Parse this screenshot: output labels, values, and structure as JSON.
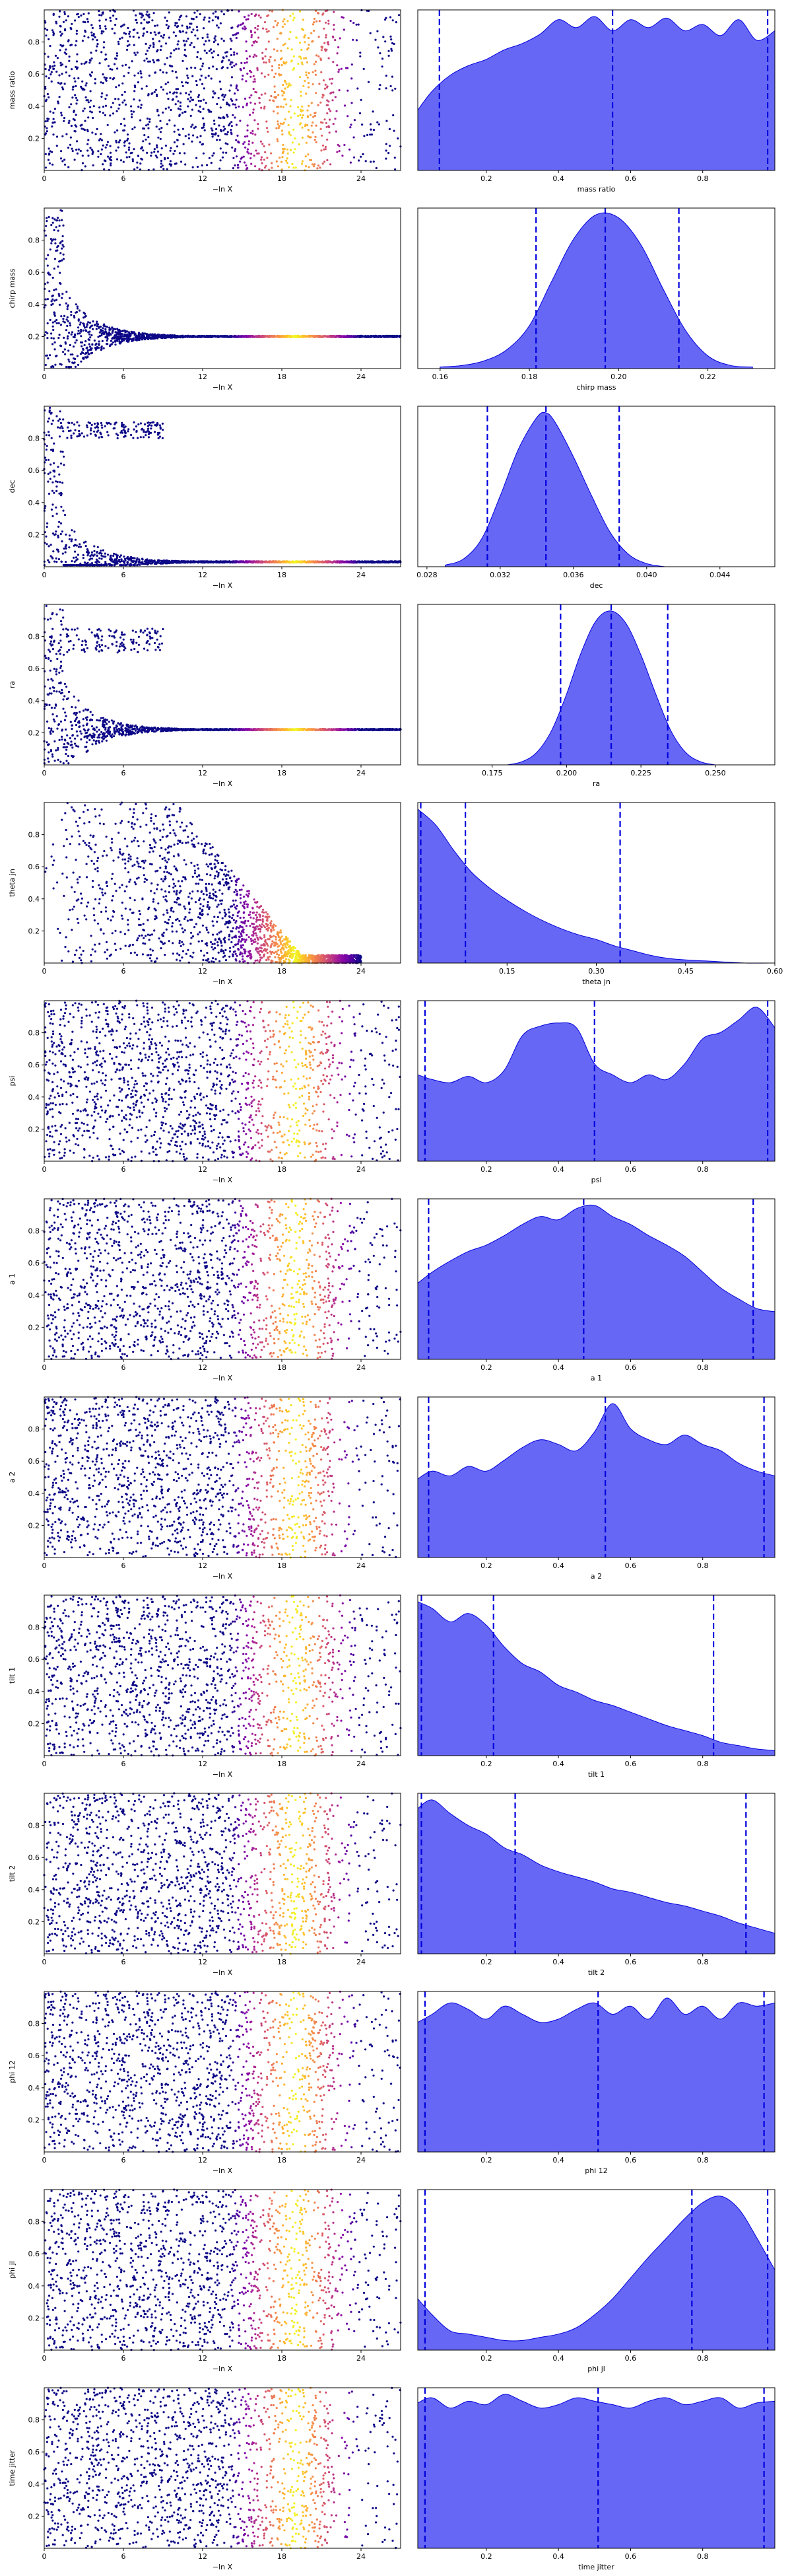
{
  "chart_data": [
    {
      "type": "scatter",
      "kind": "trace",
      "param": "mass ratio",
      "xlabel": "−ln X",
      "ylabel": "mass ratio",
      "xlim": [
        0,
        27
      ],
      "ylim": [
        0,
        1
      ],
      "xticks": [
        "0",
        "6",
        "12",
        "18",
        "24"
      ],
      "yticks": [
        "0.2",
        "0.4",
        "0.6",
        "0.8"
      ],
      "color_by": "sample density",
      "pattern": "uniform"
    },
    {
      "type": "area",
      "kind": "posterior",
      "xlabel": "mass ratio",
      "xlim": [
        0.01,
        1.0
      ],
      "xticks": [
        "0.2",
        "0.4",
        "0.6",
        "0.8"
      ],
      "quantile_lines": [
        0.07,
        0.55,
        0.98
      ],
      "x": [
        0.01,
        0.05,
        0.1,
        0.15,
        0.2,
        0.25,
        0.3,
        0.35,
        0.4,
        0.45,
        0.5,
        0.55,
        0.6,
        0.65,
        0.7,
        0.75,
        0.8,
        0.85,
        0.9,
        0.95,
        1.0
      ],
      "density": [
        0.38,
        0.5,
        0.6,
        0.66,
        0.7,
        0.76,
        0.8,
        0.86,
        0.95,
        0.9,
        0.97,
        0.88,
        0.95,
        0.9,
        0.96,
        0.88,
        0.92,
        0.85,
        0.95,
        0.82,
        0.88
      ],
      "fill_color": "#6464f5",
      "line_color": "#0000dd"
    },
    {
      "type": "scatter",
      "kind": "trace",
      "param": "chirp mass",
      "xlabel": "−ln X",
      "ylabel": "chirp mass",
      "xlim": [
        0,
        27
      ],
      "ylim": [
        0,
        1
      ],
      "xticks": [
        "0",
        "6",
        "12",
        "18",
        "24"
      ],
      "yticks": [
        "0.2",
        "0.4",
        "0.6",
        "0.8"
      ],
      "color_by": "sample density",
      "pattern": "converge",
      "converge_to": 0.2
    },
    {
      "type": "area",
      "kind": "posterior",
      "xlabel": "chirp mass",
      "xlim": [
        0.155,
        0.235
      ],
      "xticks": [
        "0.16",
        "0.18",
        "0.20",
        "0.22"
      ],
      "quantile_lines": [
        0.1815,
        0.197,
        0.2135
      ],
      "x": [
        0.16,
        0.165,
        0.17,
        0.175,
        0.18,
        0.185,
        0.19,
        0.195,
        0.2,
        0.205,
        0.21,
        0.215,
        0.22,
        0.225,
        0.23
      ],
      "density": [
        0.01,
        0.02,
        0.05,
        0.12,
        0.27,
        0.55,
        0.82,
        0.97,
        0.95,
        0.78,
        0.5,
        0.24,
        0.08,
        0.02,
        0.01
      ],
      "fill_color": "#6464f5",
      "line_color": "#0000dd"
    },
    {
      "type": "scatter",
      "kind": "trace",
      "param": "dec",
      "xlabel": "−ln X",
      "ylabel": "dec",
      "xlim": [
        0,
        27
      ],
      "ylim": [
        0,
        1
      ],
      "xticks": [
        "0",
        "6",
        "12",
        "18",
        "24"
      ],
      "yticks": [
        "0.2",
        "0.4",
        "0.6",
        "0.8"
      ],
      "color_by": "sample density",
      "pattern": "converge",
      "converge_to": 0.03,
      "cluster": [
        0.8,
        0.9
      ]
    },
    {
      "type": "area",
      "kind": "posterior",
      "xlabel": "dec",
      "xlim": [
        0.0275,
        0.047
      ],
      "xticks": [
        "0.028",
        "0.032",
        "0.036",
        "0.040",
        "0.044"
      ],
      "quantile_lines": [
        0.0313,
        0.0345,
        0.0385
      ],
      "x": [
        0.029,
        0.03,
        0.031,
        0.032,
        0.033,
        0.034,
        0.0345,
        0.035,
        0.036,
        0.037,
        0.038,
        0.039,
        0.04,
        0.041
      ],
      "density": [
        0.01,
        0.05,
        0.18,
        0.45,
        0.75,
        0.95,
        0.98,
        0.92,
        0.7,
        0.45,
        0.22,
        0.08,
        0.02,
        0.0
      ],
      "fill_color": "#6464f5",
      "line_color": "#0000dd"
    },
    {
      "type": "scatter",
      "kind": "trace",
      "param": "ra",
      "xlabel": "−ln X",
      "ylabel": "ra",
      "xlim": [
        0,
        27
      ],
      "ylim": [
        0,
        1
      ],
      "xticks": [
        "0",
        "6",
        "12",
        "18",
        "24"
      ],
      "yticks": [
        "0.2",
        "0.4",
        "0.6",
        "0.8"
      ],
      "color_by": "sample density",
      "pattern": "converge",
      "converge_to": 0.22,
      "cluster": [
        0.7,
        0.85
      ]
    },
    {
      "type": "area",
      "kind": "posterior",
      "xlabel": "ra",
      "xlim": [
        0.15,
        0.27
      ],
      "xticks": [
        "0.175",
        "0.200",
        "0.225",
        "0.250"
      ],
      "quantile_lines": [
        0.198,
        0.215,
        0.234
      ],
      "x": [
        0.18,
        0.185,
        0.19,
        0.195,
        0.2,
        0.205,
        0.21,
        0.215,
        0.22,
        0.225,
        0.23,
        0.235,
        0.24,
        0.245,
        0.25
      ],
      "density": [
        0.0,
        0.02,
        0.08,
        0.22,
        0.45,
        0.72,
        0.92,
        0.98,
        0.9,
        0.7,
        0.45,
        0.22,
        0.08,
        0.02,
        0.0
      ],
      "fill_color": "#6464f5",
      "line_color": "#0000dd"
    },
    {
      "type": "scatter",
      "kind": "trace",
      "param": "theta jn",
      "xlabel": "−ln X",
      "ylabel": "theta jn",
      "xlim": [
        0,
        27
      ],
      "ylim": [
        0,
        1
      ],
      "xticks": [
        "0",
        "6",
        "12",
        "18",
        "24"
      ],
      "yticks": [
        "0.2",
        "0.4",
        "0.6",
        "0.8"
      ],
      "color_by": "sample density",
      "pattern": "decay"
    },
    {
      "type": "area",
      "kind": "posterior",
      "xlabel": "theta jn",
      "xlim": [
        0.0,
        0.6
      ],
      "xticks": [
        "0.15",
        "0.30",
        "0.45",
        "0.60"
      ],
      "quantile_lines": [
        0.005,
        0.08,
        0.34
      ],
      "x": [
        0.0,
        0.03,
        0.06,
        0.09,
        0.12,
        0.15,
        0.18,
        0.21,
        0.24,
        0.27,
        0.3,
        0.33,
        0.36,
        0.39,
        0.42,
        0.45,
        0.5,
        0.55,
        0.6
      ],
      "density": [
        0.98,
        0.88,
        0.72,
        0.58,
        0.48,
        0.4,
        0.33,
        0.27,
        0.22,
        0.18,
        0.15,
        0.11,
        0.08,
        0.05,
        0.03,
        0.02,
        0.01,
        0.0,
        0.0
      ],
      "fill_color": "#6464f5",
      "line_color": "#0000dd"
    },
    {
      "type": "scatter",
      "kind": "trace",
      "param": "psi",
      "xlabel": "−ln X",
      "ylabel": "psi",
      "xlim": [
        0,
        27
      ],
      "ylim": [
        0,
        1
      ],
      "xticks": [
        "0",
        "6",
        "12",
        "18",
        "24"
      ],
      "yticks": [
        "0.2",
        "0.4",
        "0.6",
        "0.8"
      ],
      "color_by": "sample density",
      "pattern": "uniform"
    },
    {
      "type": "area",
      "kind": "posterior",
      "xlabel": "psi",
      "xlim": [
        0.01,
        1.0
      ],
      "xticks": [
        "0.2",
        "0.4",
        "0.6",
        "0.8"
      ],
      "quantile_lines": [
        0.03,
        0.5,
        0.98
      ],
      "x": [
        0.01,
        0.05,
        0.1,
        0.15,
        0.2,
        0.25,
        0.3,
        0.35,
        0.4,
        0.45,
        0.5,
        0.55,
        0.6,
        0.65,
        0.7,
        0.75,
        0.8,
        0.85,
        0.9,
        0.95,
        1.0
      ],
      "density": [
        0.55,
        0.52,
        0.5,
        0.54,
        0.5,
        0.58,
        0.8,
        0.86,
        0.88,
        0.85,
        0.62,
        0.55,
        0.5,
        0.55,
        0.52,
        0.62,
        0.78,
        0.82,
        0.9,
        0.98,
        0.85
      ],
      "fill_color": "#6464f5",
      "line_color": "#0000dd"
    },
    {
      "type": "scatter",
      "kind": "trace",
      "param": "a 1",
      "xlabel": "−ln X",
      "ylabel": "a 1",
      "xlim": [
        0,
        27
      ],
      "ylim": [
        0,
        1
      ],
      "xticks": [
        "0",
        "6",
        "12",
        "18",
        "24"
      ],
      "yticks": [
        "0.2",
        "0.4",
        "0.6",
        "0.8"
      ],
      "color_by": "sample density",
      "pattern": "uniform"
    },
    {
      "type": "area",
      "kind": "posterior",
      "xlabel": "a 1",
      "xlim": [
        0.01,
        1.0
      ],
      "xticks": [
        "0.2",
        "0.4",
        "0.6",
        "0.8"
      ],
      "quantile_lines": [
        0.04,
        0.47,
        0.94
      ],
      "x": [
        0.01,
        0.05,
        0.1,
        0.15,
        0.2,
        0.25,
        0.3,
        0.35,
        0.4,
        0.45,
        0.5,
        0.55,
        0.6,
        0.65,
        0.7,
        0.75,
        0.8,
        0.85,
        0.9,
        0.95,
        1.0
      ],
      "density": [
        0.48,
        0.55,
        0.62,
        0.68,
        0.72,
        0.78,
        0.85,
        0.9,
        0.88,
        0.95,
        0.97,
        0.9,
        0.85,
        0.78,
        0.72,
        0.65,
        0.55,
        0.45,
        0.38,
        0.32,
        0.3
      ],
      "fill_color": "#6464f5",
      "line_color": "#0000dd"
    },
    {
      "type": "scatter",
      "kind": "trace",
      "param": "a 2",
      "xlabel": "−ln X",
      "ylabel": "a 2",
      "xlim": [
        0,
        27
      ],
      "ylim": [
        0,
        1
      ],
      "xticks": [
        "0",
        "6",
        "12",
        "18",
        "24"
      ],
      "yticks": [
        "0.2",
        "0.4",
        "0.6",
        "0.8"
      ],
      "color_by": "sample density",
      "pattern": "uniform"
    },
    {
      "type": "area",
      "kind": "posterior",
      "xlabel": "a 2",
      "xlim": [
        0.01,
        1.0
      ],
      "xticks": [
        "0.2",
        "0.4",
        "0.6",
        "0.8"
      ],
      "quantile_lines": [
        0.04,
        0.53,
        0.97
      ],
      "x": [
        0.01,
        0.05,
        0.1,
        0.15,
        0.2,
        0.25,
        0.3,
        0.35,
        0.4,
        0.45,
        0.5,
        0.55,
        0.6,
        0.65,
        0.7,
        0.75,
        0.8,
        0.85,
        0.9,
        0.95,
        1.0
      ],
      "density": [
        0.5,
        0.55,
        0.52,
        0.58,
        0.55,
        0.62,
        0.7,
        0.75,
        0.72,
        0.68,
        0.8,
        0.98,
        0.82,
        0.75,
        0.72,
        0.78,
        0.72,
        0.68,
        0.6,
        0.55,
        0.52
      ],
      "fill_color": "#6464f5",
      "line_color": "#0000dd"
    },
    {
      "type": "scatter",
      "kind": "trace",
      "param": "tilt 1",
      "xlabel": "−ln X",
      "ylabel": "tilt 1",
      "xlim": [
        0,
        27
      ],
      "ylim": [
        0,
        1
      ],
      "xticks": [
        "0",
        "6",
        "12",
        "18",
        "24"
      ],
      "yticks": [
        "0.2",
        "0.4",
        "0.6",
        "0.8"
      ],
      "color_by": "sample density",
      "pattern": "uniform"
    },
    {
      "type": "area",
      "kind": "posterior",
      "xlabel": "tilt 1",
      "xlim": [
        0.01,
        1.0
      ],
      "xticks": [
        "0.2",
        "0.4",
        "0.6",
        "0.8"
      ],
      "quantile_lines": [
        0.02,
        0.22,
        0.83
      ],
      "x": [
        0.01,
        0.05,
        0.1,
        0.15,
        0.2,
        0.25,
        0.3,
        0.35,
        0.4,
        0.45,
        0.5,
        0.55,
        0.6,
        0.65,
        0.7,
        0.75,
        0.8,
        0.85,
        0.9,
        0.95,
        1.0
      ],
      "density": [
        0.92,
        0.88,
        0.8,
        0.85,
        0.78,
        0.65,
        0.55,
        0.5,
        0.42,
        0.38,
        0.33,
        0.3,
        0.26,
        0.22,
        0.18,
        0.15,
        0.12,
        0.08,
        0.06,
        0.04,
        0.03
      ],
      "fill_color": "#6464f5",
      "line_color": "#0000dd"
    },
    {
      "type": "scatter",
      "kind": "trace",
      "param": "tilt 2",
      "xlabel": "−ln X",
      "ylabel": "tilt 2",
      "xlim": [
        0,
        27
      ],
      "ylim": [
        0,
        1
      ],
      "xticks": [
        "0",
        "6",
        "12",
        "18",
        "24"
      ],
      "yticks": [
        "0.2",
        "0.4",
        "0.6",
        "0.8"
      ],
      "color_by": "sample density",
      "pattern": "uniform"
    },
    {
      "type": "area",
      "kind": "posterior",
      "xlabel": "tilt 2",
      "xlim": [
        0.01,
        1.0
      ],
      "xticks": [
        "0.2",
        "0.4",
        "0.6",
        "0.8"
      ],
      "quantile_lines": [
        0.02,
        0.28,
        0.92
      ],
      "x": [
        0.01,
        0.05,
        0.1,
        0.15,
        0.2,
        0.25,
        0.3,
        0.35,
        0.4,
        0.45,
        0.5,
        0.55,
        0.6,
        0.65,
        0.7,
        0.75,
        0.8,
        0.85,
        0.9,
        0.95,
        1.0
      ],
      "density": [
        0.85,
        0.9,
        0.82,
        0.75,
        0.7,
        0.62,
        0.58,
        0.52,
        0.48,
        0.45,
        0.42,
        0.38,
        0.36,
        0.33,
        0.3,
        0.28,
        0.25,
        0.22,
        0.18,
        0.15,
        0.12
      ],
      "fill_color": "#6464f5",
      "line_color": "#0000dd"
    },
    {
      "type": "scatter",
      "kind": "trace",
      "param": "phi 12",
      "xlabel": "−ln X",
      "ylabel": "phi 12",
      "xlim": [
        0,
        27
      ],
      "ylim": [
        0,
        1
      ],
      "xticks": [
        "0",
        "6",
        "12",
        "18",
        "24"
      ],
      "yticks": [
        "0.2",
        "0.4",
        "0.6",
        "0.8"
      ],
      "color_by": "sample density",
      "pattern": "uniform"
    },
    {
      "type": "area",
      "kind": "posterior",
      "xlabel": "phi 12",
      "xlim": [
        0.01,
        1.0
      ],
      "xticks": [
        "0.2",
        "0.4",
        "0.6",
        "0.8"
      ],
      "quantile_lines": [
        0.03,
        0.51,
        0.97
      ],
      "x": [
        0.01,
        0.05,
        0.1,
        0.15,
        0.2,
        0.25,
        0.3,
        0.35,
        0.4,
        0.45,
        0.5,
        0.55,
        0.6,
        0.65,
        0.7,
        0.75,
        0.8,
        0.85,
        0.9,
        0.95,
        1.0
      ],
      "density": [
        0.8,
        0.85,
        0.92,
        0.88,
        0.82,
        0.9,
        0.85,
        0.8,
        0.82,
        0.88,
        0.92,
        0.85,
        0.9,
        0.82,
        0.95,
        0.85,
        0.9,
        0.82,
        0.92,
        0.9,
        0.92
      ],
      "fill_color": "#6464f5",
      "line_color": "#0000dd"
    },
    {
      "type": "scatter",
      "kind": "trace",
      "param": "phi jl",
      "xlabel": "−ln X",
      "ylabel": "phi jl",
      "xlim": [
        0,
        27
      ],
      "ylim": [
        0,
        1
      ],
      "xticks": [
        "0",
        "6",
        "12",
        "18",
        "24"
      ],
      "yticks": [
        "0.2",
        "0.4",
        "0.6",
        "0.8"
      ],
      "color_by": "sample density",
      "pattern": "uniform"
    },
    {
      "type": "area",
      "kind": "posterior",
      "xlabel": "phi jl",
      "xlim": [
        0.01,
        1.0
      ],
      "xticks": [
        "0.2",
        "0.4",
        "0.6",
        "0.8"
      ],
      "quantile_lines": [
        0.03,
        0.77,
        0.98
      ],
      "x": [
        0.01,
        0.05,
        0.1,
        0.15,
        0.2,
        0.25,
        0.3,
        0.35,
        0.4,
        0.45,
        0.5,
        0.55,
        0.6,
        0.65,
        0.7,
        0.75,
        0.8,
        0.85,
        0.9,
        0.95,
        1.0
      ],
      "density": [
        0.32,
        0.22,
        0.12,
        0.1,
        0.08,
        0.06,
        0.06,
        0.08,
        0.1,
        0.14,
        0.22,
        0.32,
        0.45,
        0.58,
        0.7,
        0.82,
        0.92,
        0.96,
        0.88,
        0.7,
        0.5
      ],
      "fill_color": "#6464f5",
      "line_color": "#0000dd"
    },
    {
      "type": "scatter",
      "kind": "trace",
      "param": "time jitter",
      "xlabel": "−ln X",
      "ylabel": "time jitter",
      "xlim": [
        0,
        27
      ],
      "ylim": [
        0,
        1
      ],
      "xticks": [
        "0",
        "6",
        "12",
        "18",
        "24"
      ],
      "yticks": [
        "0.2",
        "0.4",
        "0.6",
        "0.8"
      ],
      "color_by": "sample density",
      "pattern": "uniform"
    },
    {
      "type": "area",
      "kind": "posterior",
      "xlabel": "time jitter",
      "xlim": [
        0.01,
        1.0
      ],
      "xticks": [
        "0.2",
        "0.4",
        "0.6",
        "0.8"
      ],
      "quantile_lines": [
        0.03,
        0.51,
        0.97
      ],
      "x": [
        0.01,
        0.05,
        0.1,
        0.15,
        0.2,
        0.25,
        0.3,
        0.35,
        0.4,
        0.45,
        0.5,
        0.55,
        0.6,
        0.65,
        0.7,
        0.75,
        0.8,
        0.85,
        0.9,
        0.95,
        1.0
      ],
      "density": [
        0.85,
        0.88,
        0.82,
        0.86,
        0.84,
        0.9,
        0.86,
        0.82,
        0.84,
        0.88,
        0.86,
        0.84,
        0.82,
        0.86,
        0.88,
        0.84,
        0.86,
        0.88,
        0.82,
        0.85,
        0.86
      ],
      "fill_color": "#6464f5",
      "line_color": "#0000dd"
    }
  ]
}
